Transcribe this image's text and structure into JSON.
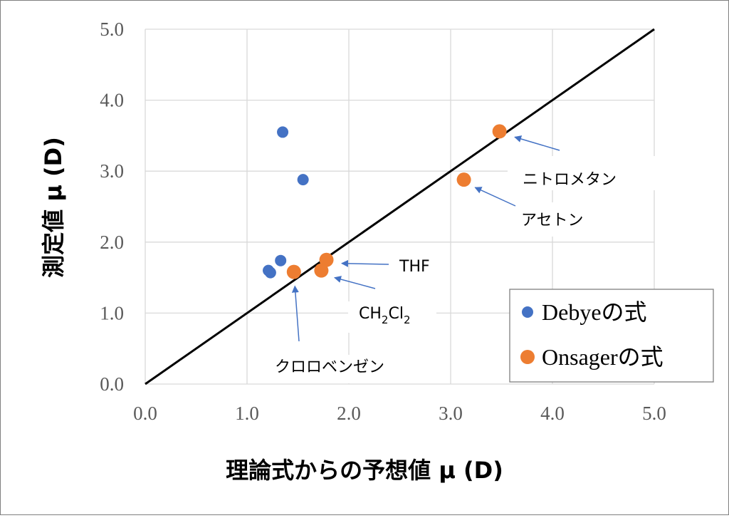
{
  "chart_data": {
    "type": "scatter",
    "xlabel": "理論式からの予想値 μ (D)",
    "ylabel": "測定値 μ (D)",
    "xlim": [
      0,
      5
    ],
    "ylim": [
      0,
      5
    ],
    "x_ticks": [
      "0.0",
      "1.0",
      "2.0",
      "3.0",
      "4.0",
      "5.0"
    ],
    "y_ticks": [
      "0.0",
      "1.0",
      "2.0",
      "3.0",
      "4.0",
      "5.0"
    ],
    "grid": true,
    "legend_position": "bottom-right",
    "reference_line": {
      "x": [
        0,
        5
      ],
      "y": [
        0,
        5
      ],
      "color": "#000000"
    },
    "series": [
      {
        "name": "Debyeの式",
        "color": "#4472C4",
        "points": [
          {
            "x": 1.35,
            "y": 3.55
          },
          {
            "x": 1.55,
            "y": 2.88
          },
          {
            "x": 1.33,
            "y": 1.74
          },
          {
            "x": 1.21,
            "y": 1.6
          },
          {
            "x": 1.23,
            "y": 1.57
          }
        ]
      },
      {
        "name": "Onsagerの式",
        "color": "#ED7D31",
        "points": [
          {
            "x": 3.48,
            "y": 3.56
          },
          {
            "x": 3.13,
            "y": 2.88
          },
          {
            "x": 1.78,
            "y": 1.75
          },
          {
            "x": 1.73,
            "y": 1.6
          },
          {
            "x": 1.46,
            "y": 1.58
          }
        ]
      }
    ],
    "annotations": [
      {
        "text": "ニトロメタン",
        "target": {
          "x": 3.63,
          "y": 3.48
        }
      },
      {
        "text": "アセトン",
        "target": {
          "x": 3.24,
          "y": 2.77
        }
      },
      {
        "text": "THF",
        "target": {
          "x": 1.93,
          "y": 1.7
        }
      },
      {
        "text": "CH2Cl2",
        "label_parts": [
          "CH",
          "2",
          "Cl",
          "2"
        ],
        "target": {
          "x": 1.86,
          "y": 1.5
        }
      },
      {
        "text": "クロロベンゼン",
        "target": {
          "x": 1.47,
          "y": 1.38
        }
      }
    ]
  }
}
